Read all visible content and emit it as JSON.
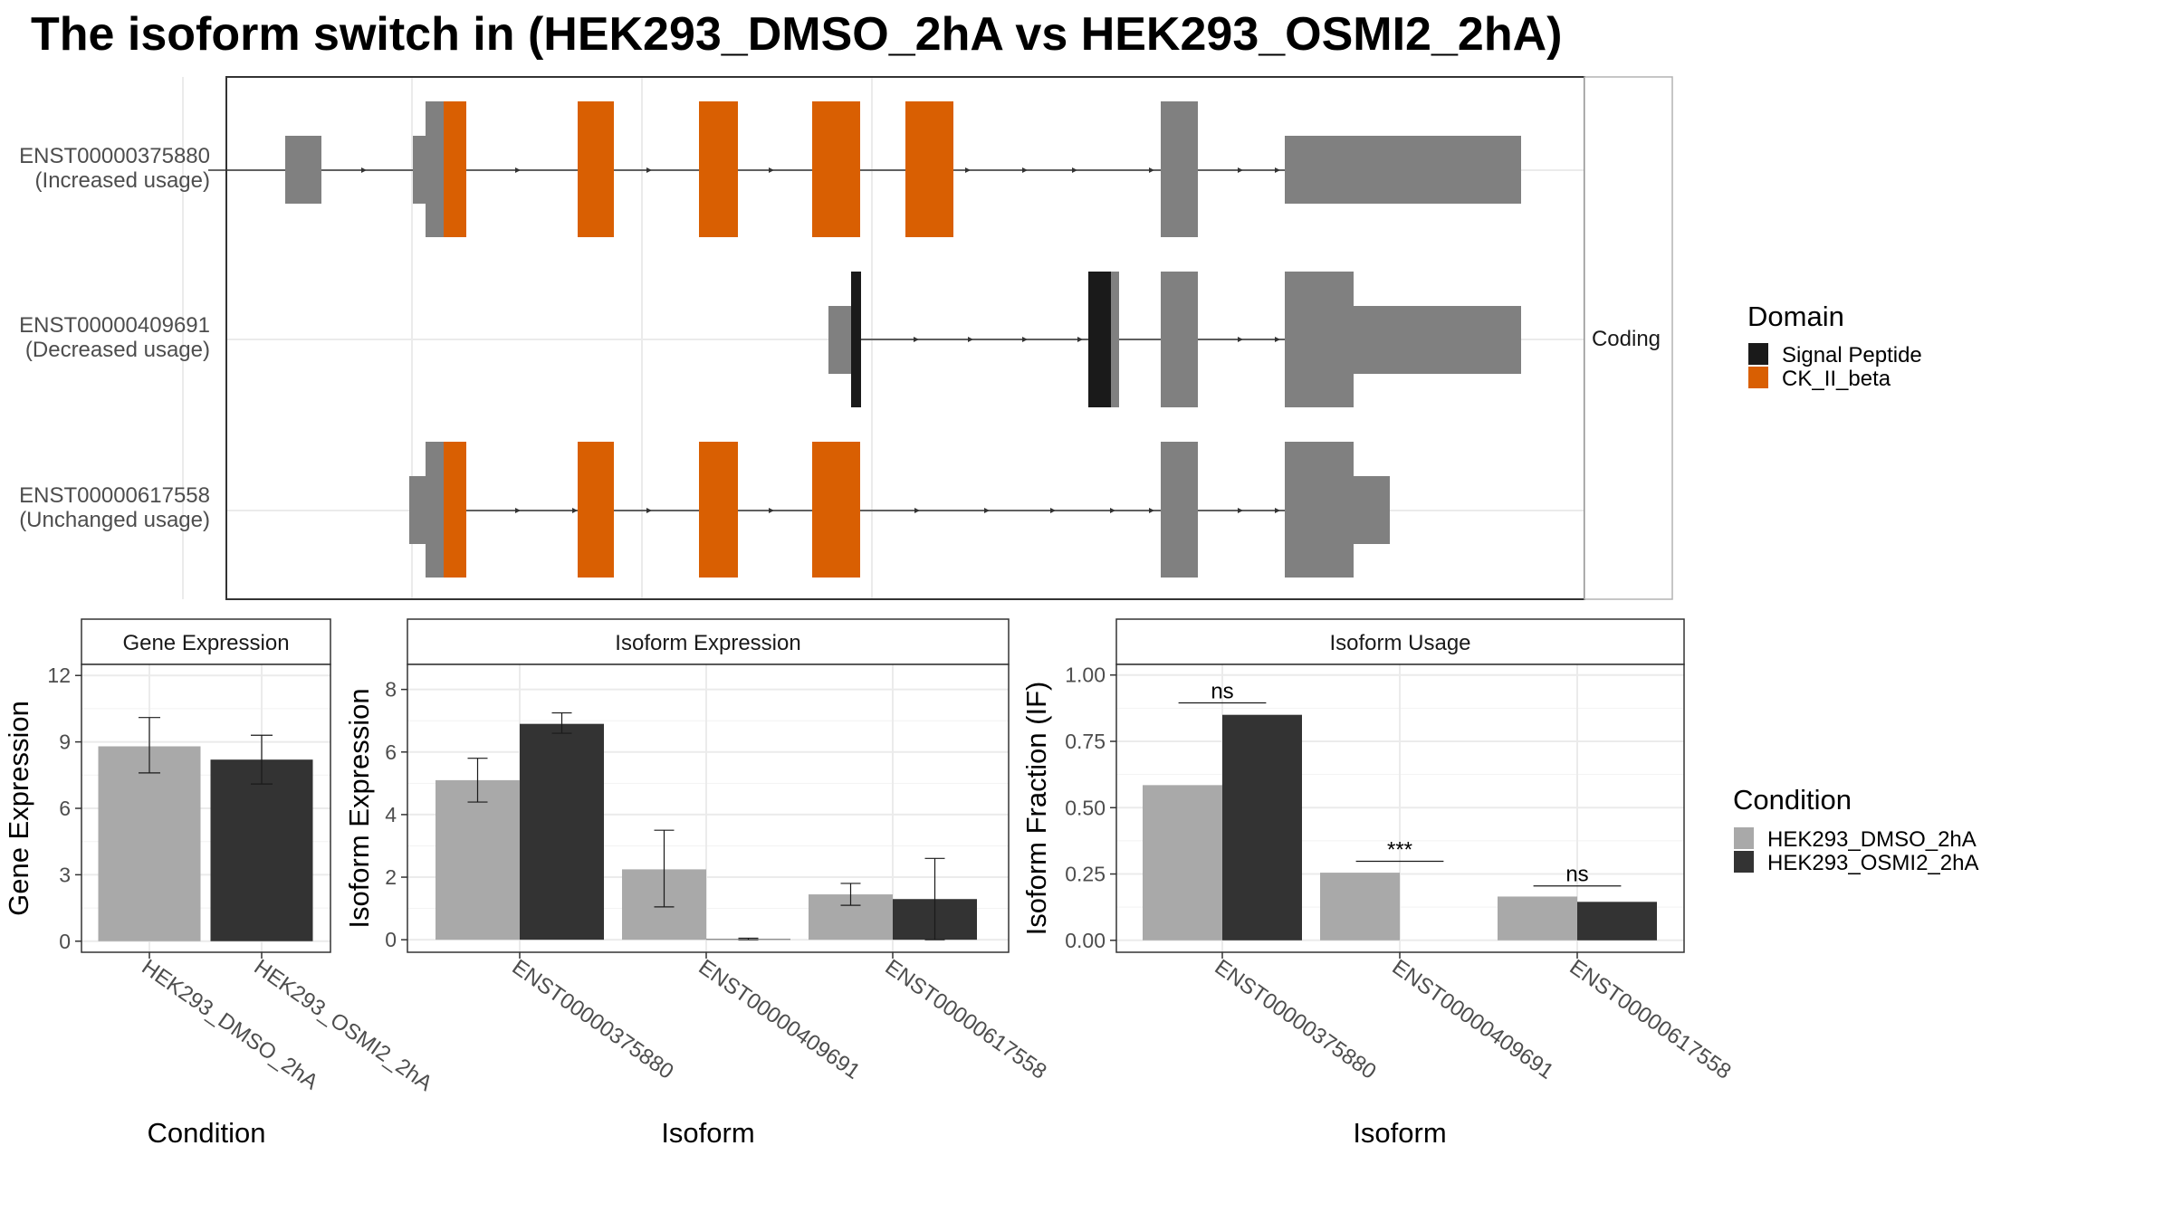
{
  "title": "The isoform switch in  (HEK293_DMSO_2hA vs HEK293_OSMI2_2hA)",
  "structure_panel": {
    "strip_label": "Coding",
    "transcripts": [
      {
        "id": "ENST00000375880",
        "usage": "(Increased usage)"
      },
      {
        "id": "ENST00000409691",
        "usage": "(Decreased usage)"
      },
      {
        "id": "ENST00000617558",
        "usage": "(Unchanged usage)"
      }
    ]
  },
  "domain_legend": {
    "title": "Domain",
    "items": [
      {
        "label": "Signal Peptide",
        "color": "#1a1a1a"
      },
      {
        "label": "CK_II_beta",
        "color": "#d95f02"
      }
    ]
  },
  "condition_legend": {
    "title": "Condition",
    "items": [
      {
        "label": "HEK293_DMSO_2hA",
        "color": "#a9a9a9"
      },
      {
        "label": "HEK293_OSMI2_2hA",
        "color": "#333333"
      }
    ]
  },
  "colors": {
    "exon": "#808080",
    "intron": "#333333",
    "dmso": "#a9a9a9",
    "osmi2": "#333333",
    "strip": "#ffffff",
    "grid": "#ebebeb"
  },
  "chart_data": [
    {
      "type": "bar",
      "title": "Gene Expression",
      "xlabel": "Condition",
      "ylabel": "Gene Expression",
      "ylim": [
        -0.5,
        12.5
      ],
      "yticks": [
        0,
        3,
        6,
        9,
        12
      ],
      "categories": [
        "HEK293_DMSO_2hA",
        "HEK293_OSMI2_2hA"
      ],
      "values": [
        8.8,
        8.2
      ],
      "error_low": [
        7.6,
        7.1
      ],
      "error_high": [
        10.1,
        9.3
      ],
      "grid": true
    },
    {
      "type": "bar",
      "title": "Isoform Expression",
      "xlabel": "Isoform",
      "ylabel": "Isoform Expression",
      "ylim": [
        -0.4,
        8.8
      ],
      "yticks": [
        0,
        2,
        4,
        6,
        8
      ],
      "categories": [
        "ENST00000375880",
        "ENST00000409691",
        "ENST00000617558"
      ],
      "series": [
        {
          "name": "HEK293_DMSO_2hA",
          "values": [
            5.1,
            2.25,
            1.45
          ],
          "error_low": [
            4.4,
            1.05,
            1.1
          ],
          "error_high": [
            5.8,
            3.5,
            1.8
          ]
        },
        {
          "name": "HEK293_OSMI2_2hA",
          "values": [
            6.9,
            0.02,
            1.3
          ],
          "error_low": [
            6.6,
            0.0,
            0.0
          ],
          "error_high": [
            7.25,
            0.05,
            2.6
          ]
        }
      ],
      "grid": true
    },
    {
      "type": "bar",
      "title": "Isoform Usage",
      "xlabel": "Isoform",
      "ylabel": "Isoform Fraction (IF)",
      "ylim": [
        -0.045,
        1.04
      ],
      "yticks": [
        0.0,
        0.25,
        0.5,
        0.75,
        1.0
      ],
      "ytick_labels": [
        "0.00",
        "0.25",
        "0.50",
        "0.75",
        "1.00"
      ],
      "categories": [
        "ENST00000375880",
        "ENST00000409691",
        "ENST00000617558"
      ],
      "series": [
        {
          "name": "HEK293_DMSO_2hA",
          "values": [
            0.585,
            0.255,
            0.165
          ]
        },
        {
          "name": "HEK293_OSMI2_2hA",
          "values": [
            0.85,
            0.0,
            0.145
          ]
        }
      ],
      "significance": [
        "ns",
        "***",
        "ns"
      ],
      "significance_y": [
        0.895,
        0.298,
        0.205
      ],
      "grid": true
    }
  ]
}
